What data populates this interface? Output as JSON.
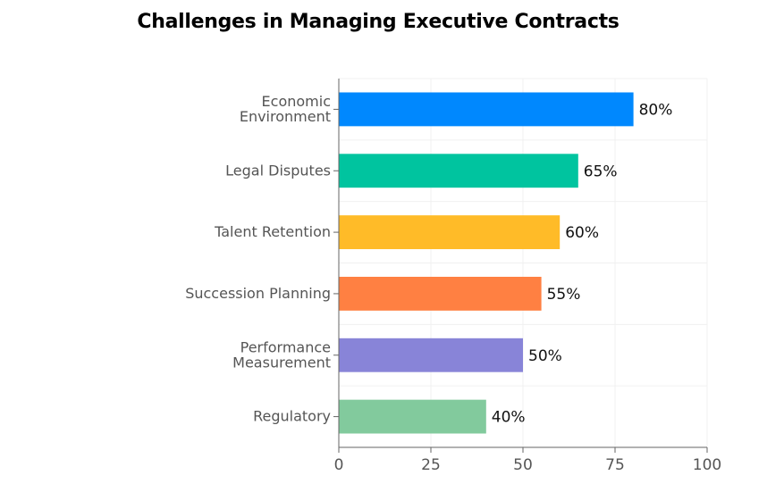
{
  "chart_data": {
    "type": "bar",
    "orientation": "horizontal",
    "title": "Challenges in Managing Executive Contracts",
    "xlabel": "",
    "ylabel": "",
    "xlim": [
      0,
      100
    ],
    "x_ticks": [
      0,
      25,
      50,
      75,
      100
    ],
    "grid": true,
    "legend": "none",
    "value_suffix": "%",
    "categories": [
      "Economic Environment",
      "Legal Disputes",
      "Talent Retention",
      "Succession Planning",
      "Performance Measurement",
      "Regulatory"
    ],
    "category_lines": [
      [
        "Economic",
        "Environment"
      ],
      [
        "Legal Disputes"
      ],
      [
        "Talent Retention"
      ],
      [
        "Succession Planning"
      ],
      [
        "Performance",
        "Measurement"
      ],
      [
        "Regulatory"
      ]
    ],
    "values": [
      80,
      65,
      60,
      55,
      50,
      40
    ],
    "data_labels": [
      "80%",
      "65%",
      "60%",
      "55%",
      "50%",
      "40%"
    ],
    "colors": [
      "#0088FE",
      "#00C49F",
      "#FFBB28",
      "#FF8042",
      "#8884D8",
      "#82CA9D"
    ]
  }
}
